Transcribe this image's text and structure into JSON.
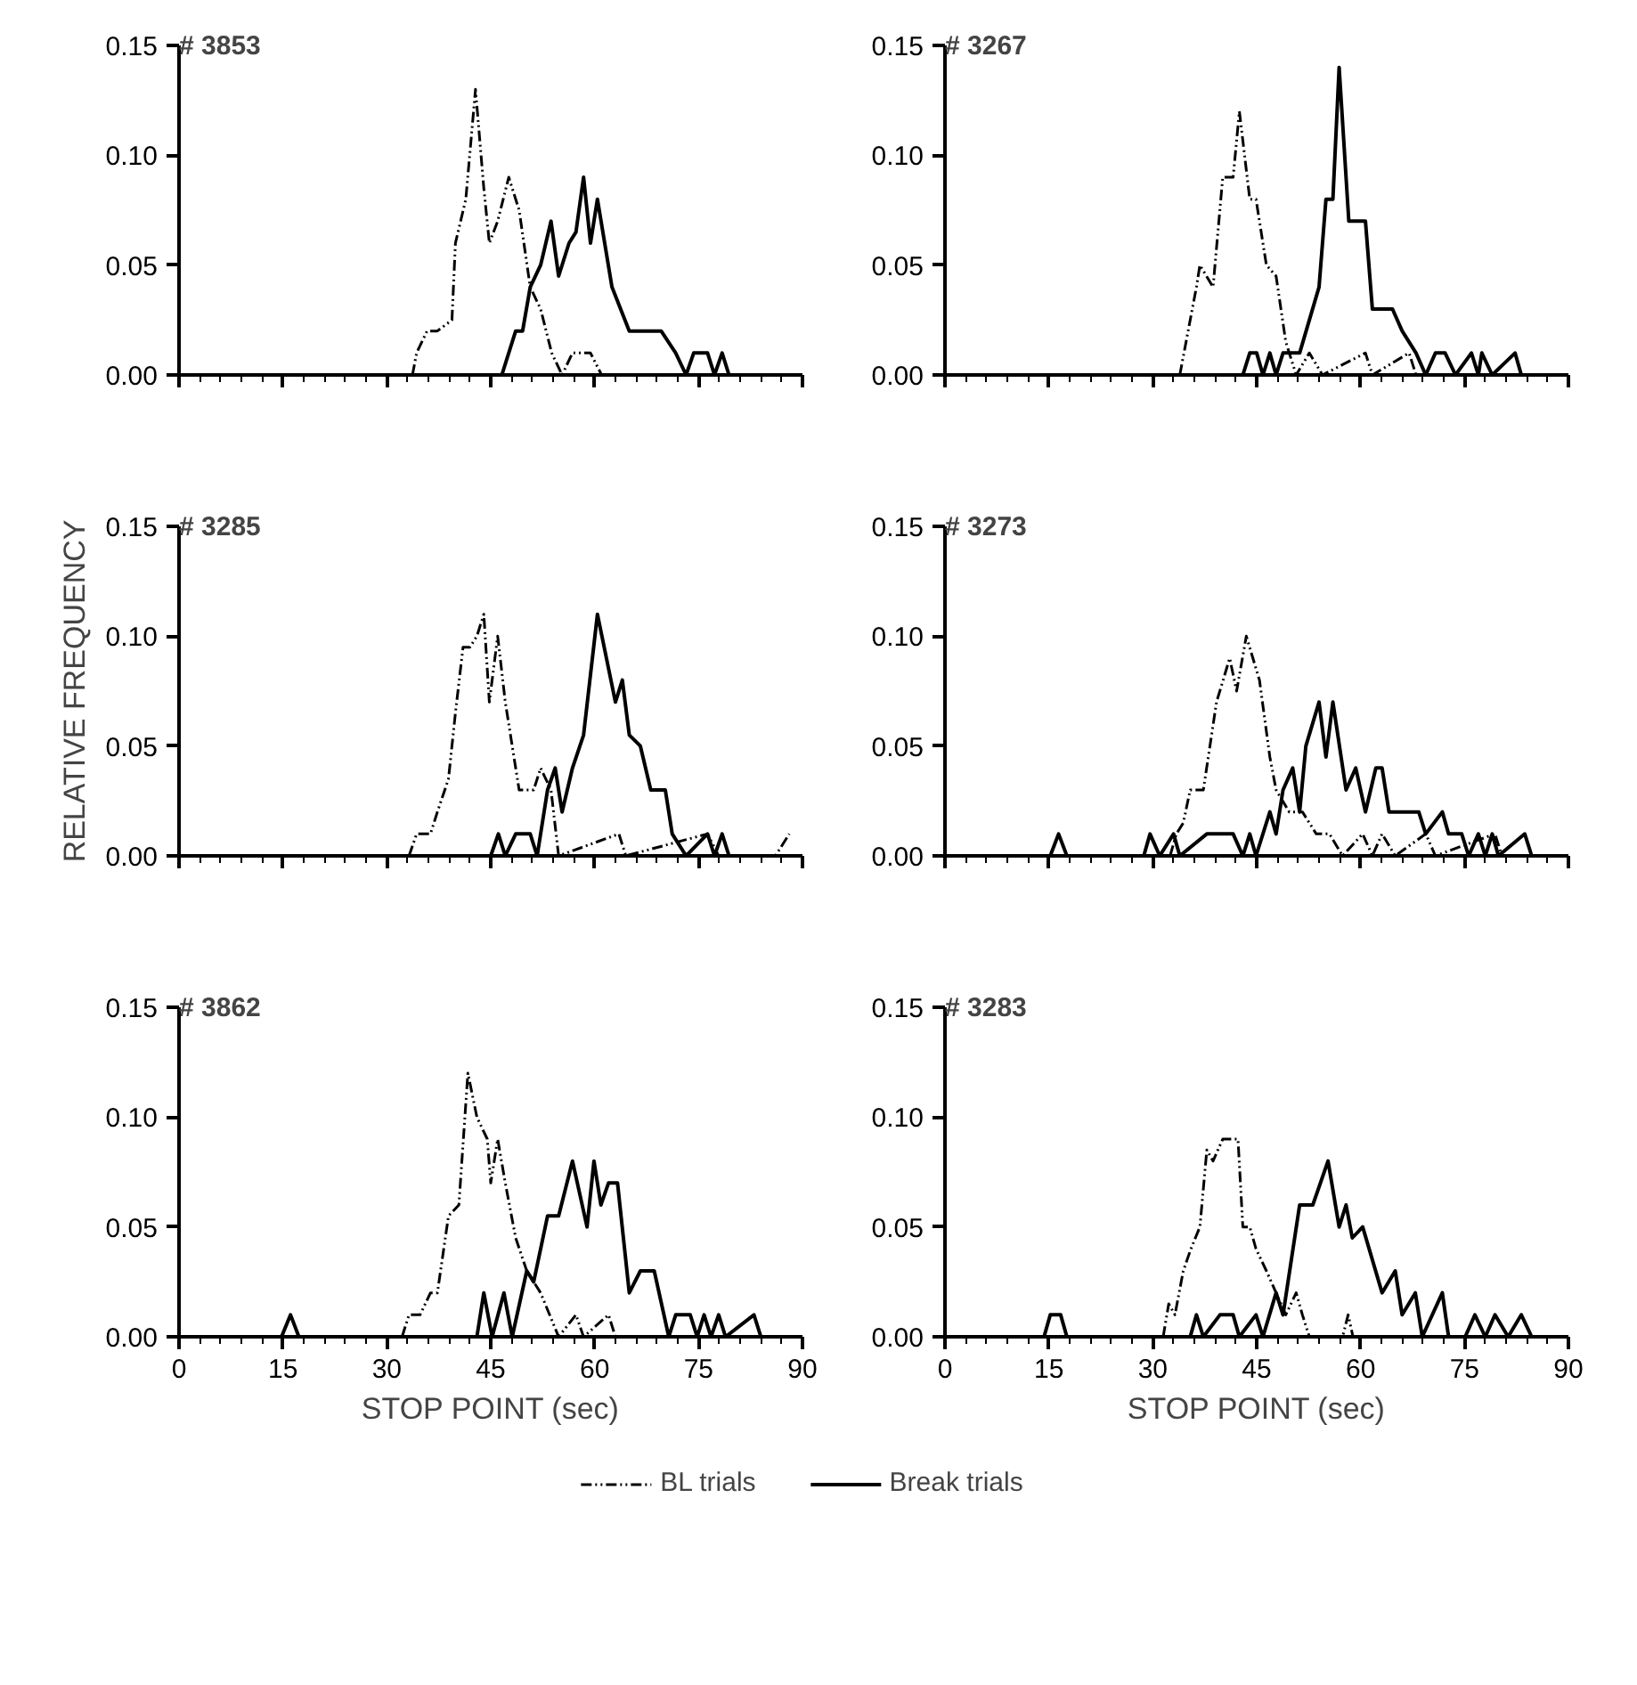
{
  "chart_data": [
    {
      "type": "line",
      "title": "# 3853",
      "xlim": [
        0,
        90
      ],
      "xticks": [
        0,
        15,
        30,
        45,
        60,
        75,
        90
      ],
      "ylim": [
        0,
        0.15
      ],
      "yticks": [
        {
          "value": 0,
          "label": "0.00"
        },
        {
          "value": 0.05,
          "label": "0.05"
        },
        {
          "value": 0.1,
          "label": "0.10"
        },
        {
          "value": 0.15,
          "label": "0.15"
        }
      ],
      "tick_labels": "y",
      "series": [
        {
          "color": "#000000",
          "line_style": "dashed",
          "x": [
            33.7,
            34.3,
            35.8,
            37.3,
            39.4,
            39.9,
            41.4,
            42.8,
            44,
            44.8,
            46,
            47.6,
            49.1,
            50.7,
            52.2,
            53.8,
            55.3,
            56.8,
            59.4,
            61
          ],
          "values": [
            0,
            0.01,
            0.02,
            0.02,
            0.025,
            0.06,
            0.08,
            0.13,
            0.085,
            0.06,
            0.07,
            0.09,
            0.075,
            0.04,
            0.03,
            0.01,
            0,
            0.01,
            0.01,
            0
          ]
        },
        {
          "color": "#000000",
          "line_style": "solid",
          "x": [
            46.6,
            48.6,
            49.6,
            50.7,
            52.2,
            53.7,
            54.8,
            56.3,
            57.3,
            58.4,
            59.4,
            60.4,
            62.5,
            65,
            66.6,
            69.6,
            71.7,
            73.2,
            74.3,
            76.3,
            77.3,
            78.4,
            79.4
          ],
          "values": [
            0,
            0.02,
            0.02,
            0.04,
            0.05,
            0.07,
            0.045,
            0.06,
            0.065,
            0.09,
            0.06,
            0.08,
            0.04,
            0.02,
            0.02,
            0.02,
            0.01,
            0,
            0.01,
            0.01,
            0,
            0.01,
            0
          ]
        }
      ]
    },
    {
      "type": "line",
      "title": "# 3267",
      "xlim": [
        0,
        90
      ],
      "xticks": [
        0,
        15,
        30,
        45,
        60,
        75,
        90
      ],
      "ylim": [
        0,
        0.15
      ],
      "yticks": [
        {
          "value": 0,
          "label": "0.00"
        },
        {
          "value": 0.05,
          "label": "0.05"
        },
        {
          "value": 0.1,
          "label": "0.10"
        },
        {
          "value": 0.15,
          "label": "0.15"
        }
      ],
      "tick_labels": "y",
      "series": [
        {
          "color": "#000000",
          "line_style": "dashed",
          "x": [
            33.9,
            36.3,
            36.8,
            38.7,
            40.1,
            41.6,
            42.5,
            44,
            44.9,
            46.4,
            47.8,
            49.2,
            50.7,
            52.6,
            54.5,
            60.7,
            61.7,
            67,
            68
          ],
          "values": [
            0,
            0.04,
            0.05,
            0.04,
            0.09,
            0.09,
            0.12,
            0.08,
            0.08,
            0.05,
            0.045,
            0.015,
            0,
            0.01,
            0,
            0.01,
            0,
            0.01,
            0
          ]
        },
        {
          "color": "#000000",
          "line_style": "solid",
          "x": [
            43,
            44,
            45,
            45.9,
            46.9,
            47.8,
            48.8,
            51.2,
            54,
            55,
            56,
            56.9,
            58.3,
            60.7,
            61.7,
            64.6,
            66,
            68,
            69.4,
            70.8,
            72.2,
            73.7,
            76,
            77,
            77.5,
            79,
            82.3,
            83.2
          ],
          "values": [
            0,
            0.01,
            0.01,
            0,
            0.01,
            0,
            0.01,
            0.01,
            0.04,
            0.08,
            0.08,
            0.14,
            0.07,
            0.07,
            0.03,
            0.03,
            0.02,
            0.01,
            0,
            0.01,
            0.01,
            0,
            0.01,
            0,
            0.01,
            0,
            0.01,
            0
          ]
        }
      ]
    },
    {
      "type": "line",
      "title": "# 3285",
      "ylabel": "RELATIVE FREQUENCY",
      "xlim": [
        0,
        90
      ],
      "xticks": [
        0,
        15,
        30,
        45,
        60,
        75,
        90
      ],
      "ylim": [
        0,
        0.15
      ],
      "yticks": [
        {
          "value": 0,
          "label": "0.00"
        },
        {
          "value": 0.05,
          "label": "0.05"
        },
        {
          "value": 0.1,
          "label": "0.10"
        },
        {
          "value": 0.15,
          "label": "0.15"
        }
      ],
      "tick_labels": "y",
      "series": [
        {
          "color": "#000000",
          "line_style": "dashed",
          "x": [
            33.2,
            34.3,
            36.3,
            37.3,
            38.9,
            39.9,
            41,
            42,
            43,
            44,
            44.8,
            46,
            47.1,
            48.1,
            49.1,
            51.2,
            52.2,
            53.7,
            54.8,
            63.5,
            64.5,
            76.3,
            77.9,
            86.1,
            88.1
          ],
          "values": [
            0,
            0.01,
            0.01,
            0.02,
            0.035,
            0.065,
            0.095,
            0.095,
            0.1,
            0.11,
            0.07,
            0.1,
            0.07,
            0.05,
            0.03,
            0.03,
            0.04,
            0.03,
            0,
            0.01,
            0,
            0.01,
            0,
            0,
            0.01
          ]
        },
        {
          "color": "#000000",
          "line_style": "solid",
          "x": [
            45,
            46.1,
            47.1,
            48.6,
            50.7,
            51.7,
            53.2,
            54.3,
            55.3,
            56.8,
            58.4,
            60.4,
            63,
            64,
            65,
            66.6,
            68.1,
            70.2,
            71.2,
            73.2,
            76.3,
            77.3,
            78.4,
            79.4
          ],
          "values": [
            0,
            0.01,
            0,
            0.01,
            0.01,
            0,
            0.03,
            0.04,
            0.02,
            0.04,
            0.055,
            0.11,
            0.07,
            0.08,
            0.055,
            0.05,
            0.03,
            0.03,
            0.01,
            0,
            0.01,
            0,
            0.01,
            0
          ]
        }
      ]
    },
    {
      "type": "line",
      "title": "# 3273",
      "xlim": [
        0,
        90
      ],
      "xticks": [
        0,
        15,
        30,
        45,
        60,
        75,
        90
      ],
      "ylim": [
        0,
        0.15
      ],
      "yticks": [
        {
          "value": 0,
          "label": "0.00"
        },
        {
          "value": 0.05,
          "label": "0.05"
        },
        {
          "value": 0.1,
          "label": "0.10"
        },
        {
          "value": 0.15,
          "label": "0.15"
        }
      ],
      "tick_labels": "y",
      "series": [
        {
          "color": "#000000",
          "line_style": "dashed",
          "x": [
            32.5,
            33.4,
            34.4,
            35.4,
            37.3,
            39.2,
            41.1,
            42.1,
            43.5,
            45.4,
            46.9,
            47.8,
            49.7,
            51.6,
            53.6,
            55.5,
            57.4,
            60.3,
            61.7,
            63.1,
            65,
            69.4,
            70.8,
            79.4,
            80.4
          ],
          "values": [
            0,
            0.01,
            0.015,
            0.03,
            0.03,
            0.07,
            0.09,
            0.075,
            0.1,
            0.08,
            0.045,
            0.03,
            0.02,
            0.02,
            0.01,
            0.01,
            0,
            0.01,
            0,
            0.01,
            0,
            0.01,
            0,
            0.01,
            0
          ]
        },
        {
          "color": "#000000",
          "line_style": "solid",
          "x": [
            15.2,
            16.4,
            17.6,
            28.7,
            29.6,
            31,
            33,
            33.9,
            37.8,
            41.6,
            43,
            44,
            44.9,
            46.9,
            47.8,
            48.8,
            50.2,
            51.2,
            52.1,
            54,
            55,
            56,
            57.9,
            59.3,
            60.7,
            62.2,
            63.1,
            64.1,
            66.5,
            68.4,
            69.4,
            71.8,
            72.7,
            74.6,
            75.6,
            77,
            78,
            79,
            79.9,
            83.7,
            84.7
          ],
          "values": [
            0,
            0.01,
            0,
            0,
            0.01,
            0,
            0.01,
            0,
            0.01,
            0.01,
            0,
            0.01,
            0,
            0.02,
            0.01,
            0.03,
            0.04,
            0.02,
            0.05,
            0.07,
            0.045,
            0.07,
            0.03,
            0.04,
            0.02,
            0.04,
            0.04,
            0.02,
            0.02,
            0.02,
            0.01,
            0.02,
            0.01,
            0.01,
            0,
            0.01,
            0,
            0.01,
            0,
            0.01,
            0
          ]
        }
      ]
    },
    {
      "type": "line",
      "title": "# 3862",
      "xlabel": "STOP POINT (sec)",
      "xlim": [
        0,
        90
      ],
      "xticks": [
        0,
        15,
        30,
        45,
        60,
        75,
        90
      ],
      "ylim": [
        0,
        0.15
      ],
      "yticks": [
        {
          "value": 0,
          "label": "0.00"
        },
        {
          "value": 0.05,
          "label": "0.05"
        },
        {
          "value": 0.1,
          "label": "0.10"
        },
        {
          "value": 0.15,
          "label": "0.15"
        }
      ],
      "legend": "bottom",
      "series": [
        {
          "name": "BL trials",
          "color": "#000000",
          "line_style": "dashed",
          "x": [
            32.2,
            33.2,
            34.8,
            36.3,
            37.3,
            38.9,
            40.4,
            41.7,
            43,
            44.5,
            45,
            46,
            47.1,
            48.6,
            50.2,
            52.2,
            54.8,
            57.3,
            58.4,
            62,
            63
          ],
          "values": [
            0,
            0.01,
            0.01,
            0.02,
            0.02,
            0.055,
            0.06,
            0.12,
            0.1,
            0.09,
            0.07,
            0.09,
            0.07,
            0.045,
            0.03,
            0.02,
            0,
            0.01,
            0,
            0.01,
            0
          ]
        },
        {
          "name": "Break trials",
          "color": "#000000",
          "line_style": "solid",
          "x": [
            14.8,
            16.1,
            17.3,
            43,
            44,
            45.2,
            46.9,
            48.1,
            50.2,
            51.2,
            53.2,
            54.8,
            56.8,
            58.9,
            59.9,
            60.9,
            62,
            63.3,
            65,
            66.6,
            68.6,
            70.7,
            71.7,
            73.8,
            74.8,
            75.8,
            76.8,
            77.9,
            78.9,
            83,
            84
          ],
          "values": [
            0,
            0.01,
            0,
            0,
            0.02,
            0,
            0.02,
            0,
            0.03,
            0.025,
            0.055,
            0.055,
            0.08,
            0.05,
            0.08,
            0.06,
            0.07,
            0.07,
            0.02,
            0.03,
            0.03,
            0,
            0.01,
            0.01,
            0,
            0.01,
            0,
            0.01,
            0,
            0.01,
            0
          ]
        }
      ]
    },
    {
      "type": "line",
      "title": "# 3283",
      "xlabel": "STOP POINT (sec)",
      "xlim": [
        0,
        90
      ],
      "xticks": [
        0,
        15,
        30,
        45,
        60,
        75,
        90
      ],
      "ylim": [
        0,
        0.15
      ],
      "yticks": [
        {
          "value": 0,
          "label": "0.00"
        },
        {
          "value": 0.05,
          "label": "0.05"
        },
        {
          "value": 0.1,
          "label": "0.10"
        },
        {
          "value": 0.15,
          "label": "0.15"
        }
      ],
      "series": [
        {
          "color": "#000000",
          "line_style": "dashed",
          "x": [
            31.5,
            32.3,
            33.2,
            34.4,
            35.5,
            36.8,
            37.8,
            38.7,
            40.1,
            42.3,
            43,
            44,
            44.9,
            46.4,
            47.8,
            49.2,
            50.7,
            51.6,
            52.6,
            57.4,
            58.2,
            58.9
          ],
          "values": [
            0,
            0.015,
            0.01,
            0.03,
            0.04,
            0.05,
            0.085,
            0.08,
            0.09,
            0.09,
            0.05,
            0.05,
            0.04,
            0.03,
            0.02,
            0.01,
            0.02,
            0.01,
            0,
            0,
            0.01,
            0
          ]
        },
        {
          "color": "#000000",
          "line_style": "solid",
          "x": [
            14.3,
            15.2,
            16.7,
            17.6,
            35.4,
            36.3,
            37.3,
            39.7,
            41.6,
            42.5,
            44.9,
            45.9,
            47.8,
            48.8,
            51.2,
            53.1,
            55.3,
            56.9,
            57.9,
            58.8,
            60.3,
            63.1,
            65,
            66,
            67.9,
            68.9,
            71.8,
            72.7,
            75.1,
            76.5,
            78,
            79.4,
            81.3,
            83.2,
            84.7
          ],
          "values": [
            0,
            0.01,
            0.01,
            0,
            0,
            0.01,
            0,
            0.01,
            0.01,
            0,
            0.01,
            0,
            0.02,
            0.01,
            0.06,
            0.06,
            0.08,
            0.05,
            0.06,
            0.045,
            0.05,
            0.02,
            0.03,
            0.01,
            0.02,
            0,
            0.02,
            0,
            0,
            0.01,
            0,
            0.01,
            0,
            0.01,
            0
          ]
        }
      ]
    }
  ]
}
